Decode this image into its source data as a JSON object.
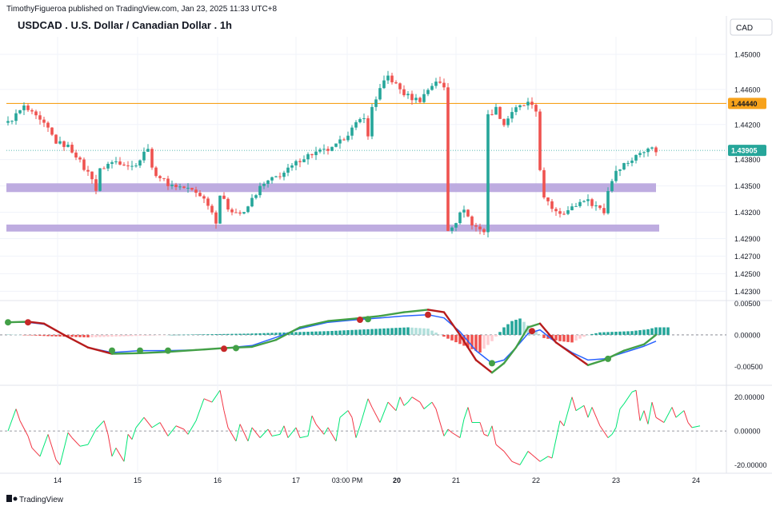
{
  "header": {
    "publisher": "TimothyFigueroa published on TradingView.com, Jan 23, 2025 11:33 UTC+8",
    "title": "USDCAD . U.S. Dollar / Canadian Dollar . 1h",
    "currency": "CAD"
  },
  "footer": {
    "brand": "TradingView",
    "logo_icon": "tradingview-logo-icon"
  },
  "colors": {
    "up": "#26a69a",
    "down": "#ef5350",
    "resistance": "#f7a21b",
    "zone": "#b39ddb",
    "macd_line": "#2962ff",
    "signal_line": "#43a047",
    "signal_down": "#b71c1c",
    "osc_up": "#00e676",
    "osc_down": "#f23645",
    "last_price_bg": "#26a69a",
    "level_bg": "#f7a21b"
  },
  "chart_data": [
    {
      "type": "candlestick",
      "title": "USDCAD . U.S. Dollar / Canadian Dollar . 1h",
      "yticks": [
        "1.45000",
        "1.44600",
        "1.44200",
        "1.43800",
        "1.43500",
        "1.43200",
        "1.42900",
        "1.42700",
        "1.42500",
        "1.42300"
      ],
      "ylim": [
        1.4223,
        1.452
      ],
      "xticks": [
        "14",
        "15",
        "16",
        "17",
        "03:00 PM",
        "20",
        "21",
        "22",
        "23",
        "24"
      ],
      "last_price": 1.43905,
      "last_price_label": "1.43905",
      "resistance": {
        "value": 1.4444,
        "label": "1.44440"
      },
      "zones": [
        {
          "from": 1.4343,
          "to": 1.4353
        },
        {
          "from": 1.4298,
          "to": 1.4306
        }
      ],
      "close_path": [
        [
          0,
          1.4422
        ],
        [
          4,
          1.444
        ],
        [
          7,
          1.4428
        ],
        [
          10,
          1.4415
        ],
        [
          12,
          1.44
        ],
        [
          15,
          1.4395
        ],
        [
          17,
          1.4385
        ],
        [
          19,
          1.437
        ],
        [
          21,
          1.436
        ],
        [
          22,
          1.4345
        ],
        [
          23,
          1.4368
        ],
        [
          25,
          1.4375
        ],
        [
          27,
          1.4378
        ],
        [
          29,
          1.4376
        ],
        [
          31,
          1.4372
        ],
        [
          33,
          1.438
        ],
        [
          35,
          1.4395
        ],
        [
          36,
          1.4368
        ],
        [
          38,
          1.436
        ],
        [
          40,
          1.4352
        ],
        [
          42,
          1.435
        ],
        [
          44,
          1.4348
        ],
        [
          46,
          1.4345
        ],
        [
          48,
          1.434
        ],
        [
          50,
          1.433
        ],
        [
          52,
          1.431
        ],
        [
          53,
          1.434
        ],
        [
          55,
          1.4325
        ],
        [
          57,
          1.432
        ],
        [
          59,
          1.4318
        ],
        [
          61,
          1.4335
        ],
        [
          63,
          1.4348
        ],
        [
          65,
          1.4355
        ],
        [
          67,
          1.436
        ],
        [
          69,
          1.4365
        ],
        [
          71,
          1.4372
        ],
        [
          73,
          1.438
        ],
        [
          75,
          1.4385
        ],
        [
          77,
          1.4388
        ],
        [
          79,
          1.439
        ],
        [
          81,
          1.4392
        ],
        [
          83,
          1.44
        ],
        [
          85,
          1.441
        ],
        [
          87,
          1.442
        ],
        [
          89,
          1.443
        ],
        [
          90,
          1.4405
        ],
        [
          91,
          1.444
        ],
        [
          93,
          1.446
        ],
        [
          95,
          1.4475
        ],
        [
          97,
          1.4465
        ],
        [
          99,
          1.4455
        ],
        [
          101,
          1.445
        ],
        [
          103,
          1.4448
        ],
        [
          105,
          1.446
        ],
        [
          107,
          1.447
        ],
        [
          109,
          1.4462
        ],
        [
          110,
          1.43
        ],
        [
          112,
          1.431
        ],
        [
          114,
          1.4325
        ],
        [
          116,
          1.4305
        ],
        [
          118,
          1.4302
        ],
        [
          119,
          1.4298
        ],
        [
          120,
          1.443
        ],
        [
          122,
          1.4438
        ],
        [
          124,
          1.442
        ],
        [
          126,
          1.4435
        ],
        [
          128,
          1.444
        ],
        [
          130,
          1.4444
        ],
        [
          132,
          1.4435
        ],
        [
          133,
          1.437
        ],
        [
          134,
          1.4335
        ],
        [
          136,
          1.4325
        ],
        [
          138,
          1.432
        ],
        [
          140,
          1.4322
        ],
        [
          142,
          1.4328
        ],
        [
          144,
          1.4335
        ],
        [
          146,
          1.433
        ],
        [
          148,
          1.4325
        ],
        [
          149,
          1.432
        ],
        [
          150,
          1.4345
        ],
        [
          152,
          1.4368
        ],
        [
          154,
          1.4375
        ],
        [
          156,
          1.438
        ],
        [
          158,
          1.4388
        ],
        [
          160,
          1.4395
        ],
        [
          162,
          1.439
        ]
      ]
    },
    {
      "type": "macd",
      "yticks": [
        "0.00500",
        "0.00000",
        "-0.00500"
      ],
      "ylim": [
        -0.0075,
        0.0052
      ],
      "macd_line": [
        [
          0,
          0.002
        ],
        [
          5,
          0.002
        ],
        [
          9,
          0.0017
        ],
        [
          14,
          0.0
        ],
        [
          20,
          -0.002
        ],
        [
          26,
          -0.0028
        ],
        [
          33,
          -0.0025
        ],
        [
          40,
          -0.0025
        ],
        [
          47,
          -0.0024
        ],
        [
          54,
          -0.0021
        ],
        [
          61,
          -0.0017
        ],
        [
          67,
          -0.0004
        ],
        [
          73,
          0.001
        ],
        [
          80,
          0.002
        ],
        [
          87,
          0.0024
        ],
        [
          93,
          0.0027
        ],
        [
          99,
          0.003
        ],
        [
          105,
          0.0032
        ],
        [
          109,
          0.0027
        ],
        [
          113,
          0.0005
        ],
        [
          117,
          -0.0025
        ],
        [
          121,
          -0.0045
        ],
        [
          124,
          -0.004
        ],
        [
          127,
          -0.002
        ],
        [
          130,
          0.0002
        ],
        [
          133,
          0.0008
        ],
        [
          137,
          -0.0012
        ],
        [
          141,
          -0.0028
        ],
        [
          145,
          -0.004
        ],
        [
          149,
          -0.0038
        ],
        [
          154,
          -0.0028
        ],
        [
          159,
          -0.0018
        ],
        [
          162,
          -0.001
        ]
      ],
      "signal_line": [
        [
          0,
          0.002
        ],
        [
          5,
          0.0021
        ],
        [
          9,
          0.0018
        ],
        [
          14,
          0.0
        ],
        [
          20,
          -0.002
        ],
        [
          26,
          -0.003
        ],
        [
          33,
          -0.0029
        ],
        [
          40,
          -0.0027
        ],
        [
          47,
          -0.0024
        ],
        [
          54,
          -0.0021
        ],
        [
          61,
          -0.0019
        ],
        [
          67,
          -0.0008
        ],
        [
          73,
          0.0012
        ],
        [
          80,
          0.0022
        ],
        [
          87,
          0.0026
        ],
        [
          93,
          0.003
        ],
        [
          99,
          0.0036
        ],
        [
          105,
          0.004
        ],
        [
          109,
          0.0036
        ],
        [
          113,
          0.0
        ],
        [
          117,
          -0.004
        ],
        [
          121,
          -0.006
        ],
        [
          124,
          -0.0045
        ],
        [
          127,
          -0.002
        ],
        [
          130,
          0.0012
        ],
        [
          133,
          0.0018
        ],
        [
          137,
          -0.0012
        ],
        [
          141,
          -0.003
        ],
        [
          145,
          -0.0048
        ],
        [
          149,
          -0.004
        ],
        [
          154,
          -0.0025
        ],
        [
          159,
          -0.0015
        ],
        [
          162,
          0.0
        ]
      ],
      "histogram": [
        [
          0,
          0.0001
        ],
        [
          10,
          -0.0002
        ],
        [
          20,
          -0.0004
        ],
        [
          30,
          -0.0002
        ],
        [
          40,
          0.0
        ],
        [
          50,
          0.0001
        ],
        [
          60,
          0.0002
        ],
        [
          70,
          0.0004
        ],
        [
          80,
          0.0006
        ],
        [
          90,
          0.0009
        ],
        [
          100,
          0.0012
        ],
        [
          105,
          0.001
        ],
        [
          110,
          -0.0006
        ],
        [
          115,
          -0.002
        ],
        [
          118,
          -0.0028
        ],
        [
          121,
          -0.001
        ],
        [
          124,
          0.0012
        ],
        [
          126,
          0.0022
        ],
        [
          128,
          0.0026
        ],
        [
          131,
          0.001
        ],
        [
          134,
          -0.0005
        ],
        [
          138,
          -0.001
        ],
        [
          141,
          -0.0012
        ],
        [
          145,
          0.0
        ],
        [
          148,
          0.0004
        ],
        [
          152,
          0.0005
        ],
        [
          156,
          0.0006
        ],
        [
          160,
          0.0009
        ],
        [
          162,
          0.0012
        ]
      ],
      "markers": [
        [
          0,
          0.002,
          "green"
        ],
        [
          5,
          0.002,
          "red"
        ],
        [
          26,
          -0.0025,
          "green"
        ],
        [
          33,
          -0.0025,
          "green"
        ],
        [
          40,
          -0.0025,
          "green"
        ],
        [
          54,
          -0.0022,
          "red"
        ],
        [
          57,
          -0.0021,
          "green"
        ],
        [
          88,
          0.0024,
          "red"
        ],
        [
          90,
          0.0025,
          "green"
        ],
        [
          105,
          0.0032,
          "red"
        ],
        [
          121,
          -0.0045,
          "green"
        ],
        [
          131,
          0.0006,
          "red"
        ],
        [
          150,
          -0.0038,
          "green"
        ]
      ]
    },
    {
      "type": "oscillator",
      "yticks": [
        "20.00000",
        "0.00000",
        "-20.00000"
      ],
      "ylim": [
        -24,
        26
      ],
      "values": [
        [
          0,
          0
        ],
        [
          2,
          13
        ],
        [
          3,
          6
        ],
        [
          5,
          -3
        ],
        [
          6,
          -10
        ],
        [
          8,
          -15
        ],
        [
          10,
          -2
        ],
        [
          12,
          -17
        ],
        [
          13,
          -20
        ],
        [
          15,
          -1
        ],
        [
          16,
          -4
        ],
        [
          18,
          -9
        ],
        [
          20,
          -8
        ],
        [
          22,
          1
        ],
        [
          24,
          6
        ],
        [
          25,
          -2
        ],
        [
          26,
          -15
        ],
        [
          27,
          -10
        ],
        [
          29,
          -18
        ],
        [
          30,
          -2
        ],
        [
          31,
          -5
        ],
        [
          32,
          2
        ],
        [
          34,
          8
        ],
        [
          36,
          2
        ],
        [
          38,
          5
        ],
        [
          40,
          -3
        ],
        [
          42,
          3
        ],
        [
          44,
          1
        ],
        [
          45,
          -2
        ],
        [
          47,
          6
        ],
        [
          49,
          19
        ],
        [
          51,
          17
        ],
        [
          53,
          24
        ],
        [
          54,
          12
        ],
        [
          55,
          2
        ],
        [
          57,
          -6
        ],
        [
          58,
          4
        ],
        [
          60,
          -6
        ],
        [
          61,
          2
        ],
        [
          63,
          -4
        ],
        [
          65,
          1
        ],
        [
          66,
          -3
        ],
        [
          68,
          -2
        ],
        [
          69,
          3
        ],
        [
          70,
          -4
        ],
        [
          72,
          2
        ],
        [
          73,
          -4
        ],
        [
          75,
          -3
        ],
        [
          76,
          9
        ],
        [
          77,
          4
        ],
        [
          79,
          -2
        ],
        [
          80,
          2
        ],
        [
          82,
          -6
        ],
        [
          83,
          8
        ],
        [
          85,
          12
        ],
        [
          86,
          8
        ],
        [
          87,
          -4
        ],
        [
          88,
          3
        ],
        [
          90,
          19
        ],
        [
          91,
          14
        ],
        [
          93,
          5
        ],
        [
          95,
          17
        ],
        [
          97,
          12
        ],
        [
          98,
          20
        ],
        [
          99,
          15
        ],
        [
          100,
          17
        ],
        [
          101,
          20
        ],
        [
          103,
          17
        ],
        [
          104,
          13
        ],
        [
          106,
          17
        ],
        [
          107,
          13
        ],
        [
          109,
          -3
        ],
        [
          110,
          1
        ],
        [
          111,
          -1
        ],
        [
          113,
          -4
        ],
        [
          114,
          7
        ],
        [
          115,
          14
        ],
        [
          116,
          5
        ],
        [
          118,
          5
        ],
        [
          119,
          -2
        ],
        [
          120,
          -3
        ],
        [
          121,
          3
        ],
        [
          122,
          -8
        ],
        [
          124,
          -12
        ],
        [
          126,
          -18
        ],
        [
          128,
          -20
        ],
        [
          130,
          -12
        ],
        [
          131,
          -14
        ],
        [
          133,
          -18
        ],
        [
          135,
          -15
        ],
        [
          136,
          -16
        ],
        [
          138,
          6
        ],
        [
          139,
          3
        ],
        [
          141,
          20
        ],
        [
          142,
          12
        ],
        [
          144,
          15
        ],
        [
          145,
          8
        ],
        [
          146,
          14
        ],
        [
          148,
          3
        ],
        [
          150,
          -4
        ],
        [
          151,
          -2
        ],
        [
          152,
          2
        ],
        [
          153,
          13
        ],
        [
          154,
          16
        ],
        [
          156,
          23
        ],
        [
          157,
          24
        ],
        [
          158,
          6
        ],
        [
          159,
          12
        ],
        [
          160,
          4
        ],
        [
          161,
          17
        ],
        [
          162,
          8
        ],
        [
          164,
          5
        ],
        [
          166,
          14
        ],
        [
          167,
          8
        ],
        [
          169,
          12
        ],
        [
          170,
          5
        ],
        [
          171,
          2
        ],
        [
          173,
          3
        ]
      ]
    }
  ]
}
